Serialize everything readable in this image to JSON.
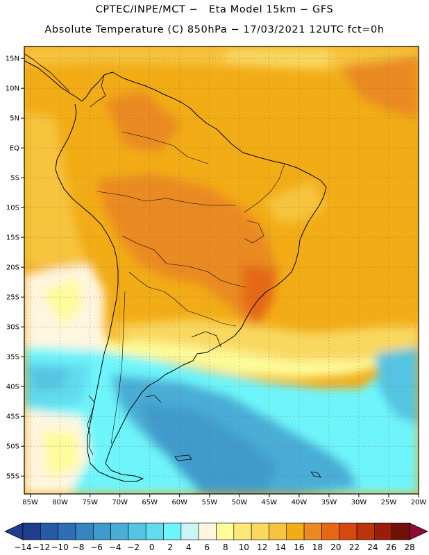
{
  "header": {
    "line1": "CPTEC/INPE/MCT −   Eta Model 15km − GFS",
    "line2": "Absolute Temperature (C) 850hPa − 17/03/2021 12UTC fct=0h"
  },
  "map": {
    "lat_labels": [
      "15N",
      "10N",
      "5N",
      "EQ",
      "5S",
      "10S",
      "15S",
      "20S",
      "25S",
      "30S",
      "35S",
      "40S",
      "45S",
      "50S",
      "55S"
    ],
    "lon_labels": [
      "85W",
      "80W",
      "75W",
      "70W",
      "65W",
      "60W",
      "55W",
      "50W",
      "45W",
      "40W",
      "35W",
      "30W",
      "25W",
      "20W"
    ],
    "lat_range": [
      17,
      -58
    ],
    "lon_range": [
      -86,
      -20
    ]
  },
  "colorbar": {
    "labels": [
      "−14",
      "−12",
      "−10",
      "−8",
      "−6",
      "−4",
      "−2",
      "0",
      "2",
      "4",
      "6",
      "8",
      "10",
      "12",
      "14",
      "16",
      "18",
      "20",
      "22",
      "24",
      "26",
      "28"
    ],
    "colors": [
      "#1f3d8c",
      "#285aa3",
      "#2e6fb3",
      "#3585c0",
      "#3f9bcc",
      "#4aadd6",
      "#55c4e2",
      "#61dbee",
      "#6ef5fb",
      "#ccf4f8",
      "#fff6e0",
      "#fdfb9a",
      "#fbea7a",
      "#f9d860",
      "#f6c43e",
      "#f2ac16",
      "#ea8a22",
      "#e56812",
      "#d44a0e",
      "#bc340c",
      "#9a1c0a",
      "#6e1208",
      "#8e0a38"
    ]
  }
}
